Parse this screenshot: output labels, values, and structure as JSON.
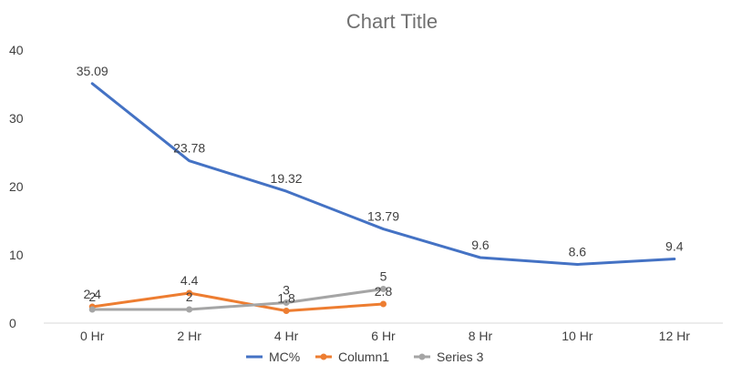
{
  "chart_data": {
    "type": "line",
    "title": "Chart Title",
    "categories": [
      "0 Hr",
      "2 Hr",
      "4 Hr",
      "6 Hr",
      "8 Hr",
      "10 Hr",
      "12 Hr"
    ],
    "ylim": [
      0,
      40
    ],
    "yticks": [
      0,
      10,
      20,
      30,
      40
    ],
    "grid": false,
    "legend_position": "bottom",
    "series": [
      {
        "name": "MC%",
        "color": "#4472C4",
        "marker": "none",
        "values": [
          35.09,
          23.78,
          19.32,
          13.79,
          9.6,
          8.6,
          9.4
        ],
        "labels": [
          "35.09",
          "23.78",
          "19.32",
          "13.79",
          "9.6",
          "8.6",
          "9.4"
        ]
      },
      {
        "name": "Column1",
        "color": "#ED7D31",
        "marker": "circle",
        "values": [
          2.4,
          4.4,
          1.8,
          2.8,
          null,
          null,
          null
        ],
        "labels": [
          "2.4",
          "4.4",
          "1.8",
          "2.8",
          null,
          null,
          null
        ]
      },
      {
        "name": "Series 3",
        "color": "#A5A5A5",
        "marker": "circle",
        "values": [
          2,
          2,
          3,
          5,
          null,
          null,
          null
        ],
        "labels": [
          "2",
          "2",
          "3",
          "5",
          null,
          null,
          null
        ]
      }
    ]
  }
}
